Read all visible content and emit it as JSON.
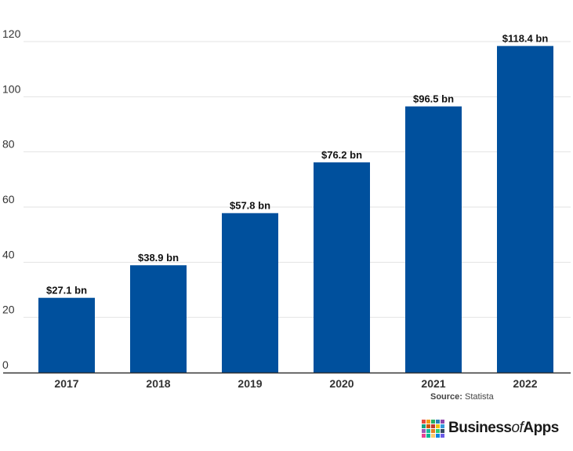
{
  "chart_data": {
    "type": "bar",
    "title": "",
    "xlabel": "",
    "ylabel": "",
    "categories": [
      "2017",
      "2018",
      "2019",
      "2020",
      "2021",
      "2022"
    ],
    "values": [
      27.1,
      38.9,
      57.8,
      76.2,
      96.5,
      118.4
    ],
    "data_labels": [
      "$27.1 bn",
      "$38.9 bn",
      "$57.8 bn",
      "$76.2 bn",
      "$96.5 bn",
      "$118.4 bn"
    ],
    "ylim": [
      0,
      120
    ],
    "yticks": [
      0,
      20,
      40,
      60,
      80,
      100,
      120
    ],
    "grid": true,
    "bar_color": "#00509d"
  },
  "footer": {
    "source_label": "Source:",
    "source_value": "Statista"
  },
  "logo": {
    "text_main": "Business",
    "text_of": "of",
    "text_end": "Apps",
    "grid_colors": [
      "#e84c3d",
      "#f39c12",
      "#27ae60",
      "#2980b9",
      "#8e44ad",
      "#16a085",
      "#d35400",
      "#c0392b",
      "#f1c40f",
      "#3498db",
      "#9b59b6",
      "#1abc9c",
      "#e67e22",
      "#2ecc71",
      "#34495e",
      "#e84393",
      "#00b894",
      "#fdcb6e",
      "#0984e3",
      "#6c5ce7"
    ]
  }
}
